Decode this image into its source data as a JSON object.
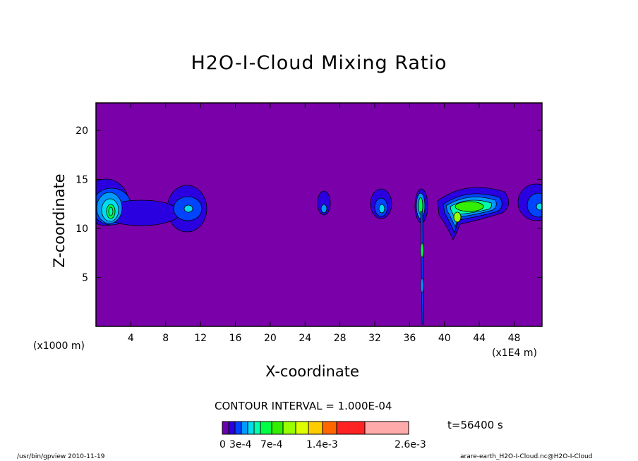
{
  "chart_data": {
    "type": "contour",
    "title": "H2O-I-Cloud Mixing Ratio",
    "xlabel": "X-coordinate",
    "ylabel": "Z-coordinate",
    "x_unit_label": "(x1000 m)",
    "x_unit_label_right": "(x1E4 m)",
    "x_ticks": [
      4,
      8,
      12,
      16,
      20,
      24,
      28,
      32,
      36,
      40,
      44,
      48
    ],
    "y_ticks": [
      5,
      10,
      15,
      20
    ],
    "xlim": [
      0,
      51.2
    ],
    "ylim": [
      0,
      22.8
    ],
    "background_color": "#7a00aa",
    "contour_interval_text": "CONTOUR INTERVAL = 1.000E-04",
    "time_text": "t=56400 s",
    "colorbar": {
      "colors": [
        "#6a00b0",
        "#2a00e0",
        "#0044ff",
        "#0099ff",
        "#00ddee",
        "#00ffaa",
        "#00ff44",
        "#33ee00",
        "#99ff00",
        "#ddff00",
        "#ffcc00",
        "#ff6600",
        "#ff2222",
        "#ffaaaa"
      ],
      "tick_labels": [
        "0",
        "3e-4",
        "7e-4",
        "1.4e-3",
        "2.6e-3"
      ]
    },
    "features": [
      {
        "x": 1.5,
        "z": 12.0,
        "peak": "4e-4"
      },
      {
        "x": 10.5,
        "z": 12.1,
        "peak": "2e-4"
      },
      {
        "x": 26.3,
        "z": 12.2,
        "peak": "1e-4"
      },
      {
        "x": 32.8,
        "z": 12.4,
        "peak": "2e-4"
      },
      {
        "x": 37.6,
        "z": 12.5,
        "peak": "5e-4"
      },
      {
        "x": 43.0,
        "z": 12.3,
        "peak": "6e-4"
      },
      {
        "x": 50.5,
        "z": 12.2,
        "peak": "2e-4"
      }
    ]
  },
  "footer": {
    "left": "/usr/bin/gpview   2010-11-19",
    "right": "arare-earth_H2O-I-Cloud.nc@H2O-I-Cloud"
  }
}
